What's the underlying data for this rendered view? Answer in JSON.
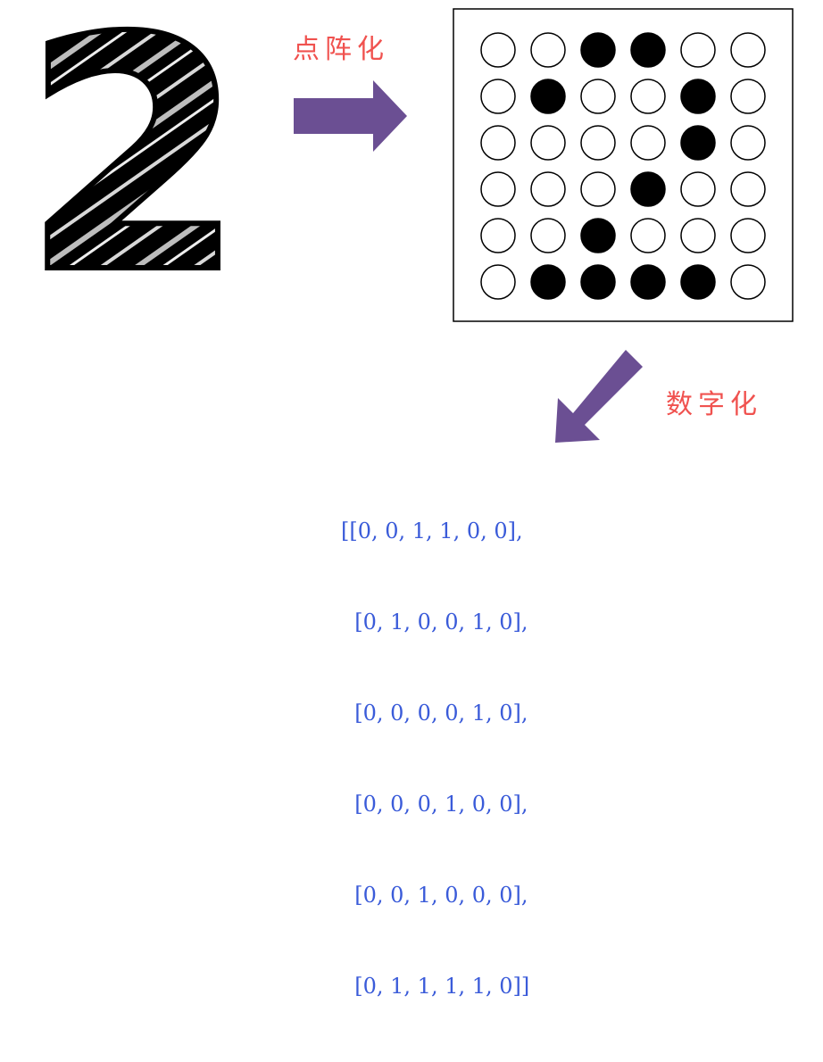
{
  "labels": {
    "dot_matrix": "点阵化",
    "digitize": "数字化"
  },
  "digit": "2",
  "grid": [
    [
      0,
      0,
      1,
      1,
      0,
      0
    ],
    [
      0,
      1,
      0,
      0,
      1,
      0
    ],
    [
      0,
      0,
      0,
      0,
      1,
      0
    ],
    [
      0,
      0,
      0,
      1,
      0,
      0
    ],
    [
      0,
      0,
      1,
      0,
      0,
      0
    ],
    [
      0,
      1,
      1,
      1,
      1,
      0
    ]
  ],
  "matrix_lines": [
    "[[0, 0, 1, 1, 0, 0],",
    "  [0, 1, 0, 0, 1, 0],",
    "  [0, 0, 0, 0, 1, 0],",
    "  [0, 0, 0, 1, 0, 0],",
    "  [0, 0, 1, 0, 0, 0],",
    "  [0, 1, 1, 1, 1, 0]]"
  ],
  "colors": {
    "arrow": "#6b4f93",
    "label": "#f0524f",
    "matrix_text": "#3a5bd9",
    "dot_on": "#000000",
    "dot_off": "#ffffff"
  }
}
